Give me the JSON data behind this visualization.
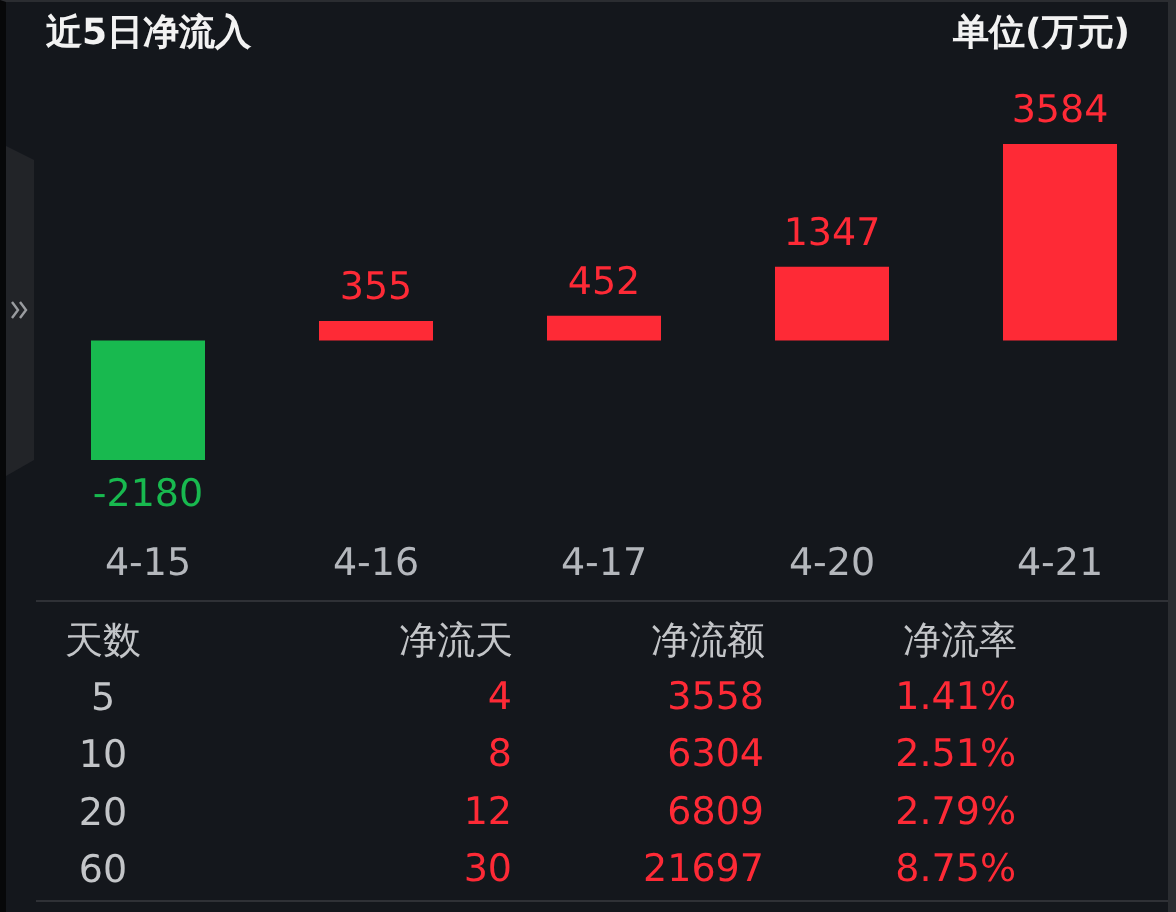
{
  "chart_data": [
    {
      "type": "bar",
      "title": "近5日净流入",
      "annotations": [
        "单位(万元)"
      ],
      "categories": [
        "4-15",
        "4-16",
        "4-17",
        "4-20",
        "4-21"
      ],
      "values": [
        -2180,
        355,
        452,
        1347,
        3584
      ],
      "colors": [
        "#18b94f",
        "#fe2a36",
        "#fe2a36",
        "#fe2a36",
        "#fe2a36"
      ],
      "data_labels": true
    },
    {
      "type": "heatmap",
      "ylabel": "天数",
      "categories": [
        "净流天",
        "净流额",
        "净流率"
      ],
      "y_categories": [
        "5",
        "10",
        "20",
        "60"
      ],
      "cells": [
        [
          4,
          3558,
          1.41
        ],
        [
          8,
          6304,
          2.51
        ],
        [
          12,
          6809,
          2.79
        ],
        [
          30,
          21697,
          8.75
        ]
      ],
      "cell_labels": [
        [
          "4",
          "3558",
          "1.41%"
        ],
        [
          "8",
          "6304",
          "2.51%"
        ],
        [
          "12",
          "6809",
          "2.79%"
        ],
        [
          "30",
          "21697",
          "8.75%"
        ]
      ],
      "color": "#fe2a36"
    }
  ]
}
